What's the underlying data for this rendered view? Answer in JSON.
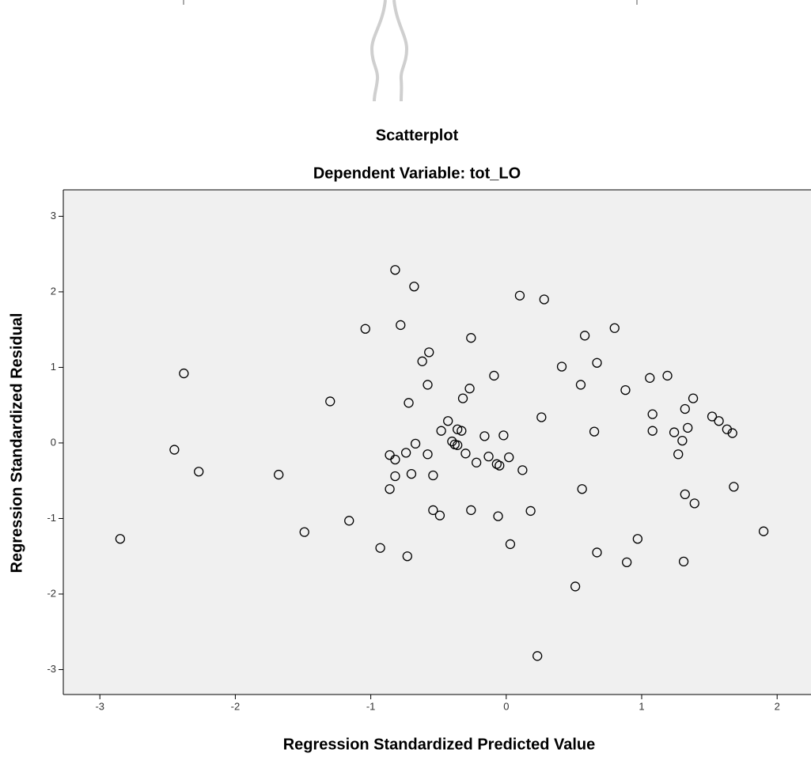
{
  "chart_data": {
    "type": "scatter",
    "title": "Scatterplot",
    "subtitle": "Dependent Variable: tot_LO",
    "x_label": "Regression Standardized Predicted Value",
    "y_label": "Regression Standardized Residual",
    "xlim": [
      -3.27,
      2.25
    ],
    "ylim": [
      -3.33,
      3.35
    ],
    "xticks": [
      -3,
      -2,
      -1,
      0,
      1,
      2
    ],
    "yticks": [
      -3,
      -2,
      -1,
      0,
      1,
      2,
      3
    ],
    "color": "#000000",
    "background": "#f0f0f0",
    "x": [
      -2.85,
      -2.38,
      -2.45,
      -2.27,
      -1.68,
      -1.49,
      -1.3,
      -1.16,
      -1.04,
      -0.93,
      -0.82,
      -0.78,
      -0.68,
      -0.86,
      -0.82,
      -0.82,
      -0.86,
      -0.73,
      -0.74,
      -0.72,
      -0.7,
      -0.67,
      -0.62,
      -0.57,
      -0.58,
      -0.58,
      -0.54,
      -0.54,
      -0.49,
      -0.48,
      -0.43,
      -0.4,
      -0.38,
      -0.36,
      -0.36,
      -0.33,
      -0.32,
      -0.3,
      -0.27,
      -0.26,
      -0.26,
      -0.22,
      -0.16,
      -0.13,
      -0.09,
      -0.07,
      -0.06,
      -0.05,
      -0.02,
      0.02,
      0.03,
      0.1,
      0.12,
      0.18,
      0.23,
      0.26,
      0.28,
      0.41,
      0.51,
      0.55,
      0.56,
      0.58,
      0.65,
      0.67,
      0.67,
      0.8,
      0.88,
      0.89,
      0.97,
      1.06,
      1.08,
      1.08,
      1.19,
      1.24,
      1.27,
      1.3,
      1.31,
      1.32,
      1.32,
      1.34,
      1.38,
      1.39,
      1.52,
      1.57,
      1.63,
      1.67,
      1.68,
      1.9
    ],
    "values": [
      -1.27,
      0.92,
      -0.09,
      -0.38,
      -0.42,
      -1.18,
      0.55,
      -1.03,
      1.51,
      -1.39,
      2.29,
      1.56,
      2.07,
      -0.16,
      -0.22,
      -0.44,
      -0.61,
      -1.5,
      -0.13,
      0.53,
      -0.41,
      -0.01,
      1.08,
      1.2,
      0.77,
      -0.15,
      -0.43,
      -0.89,
      -0.96,
      0.16,
      0.29,
      0.02,
      -0.02,
      -0.03,
      0.18,
      0.16,
      0.59,
      -0.14,
      0.72,
      1.39,
      -0.89,
      -0.26,
      0.09,
      -0.18,
      0.89,
      -0.28,
      -0.97,
      -0.3,
      0.1,
      -0.19,
      -1.34,
      1.95,
      -0.36,
      -0.9,
      -2.82,
      0.34,
      1.9,
      1.01,
      -1.9,
      0.77,
      -0.61,
      1.42,
      0.15,
      1.06,
      -1.45,
      1.52,
      0.7,
      -1.58,
      -1.27,
      0.86,
      0.38,
      0.16,
      0.89,
      0.14,
      -0.15,
      0.03,
      -1.57,
      0.45,
      -0.68,
      0.2,
      0.59,
      -0.8,
      0.35,
      0.29,
      0.18,
      0.13,
      -0.58,
      -1.17
    ]
  }
}
